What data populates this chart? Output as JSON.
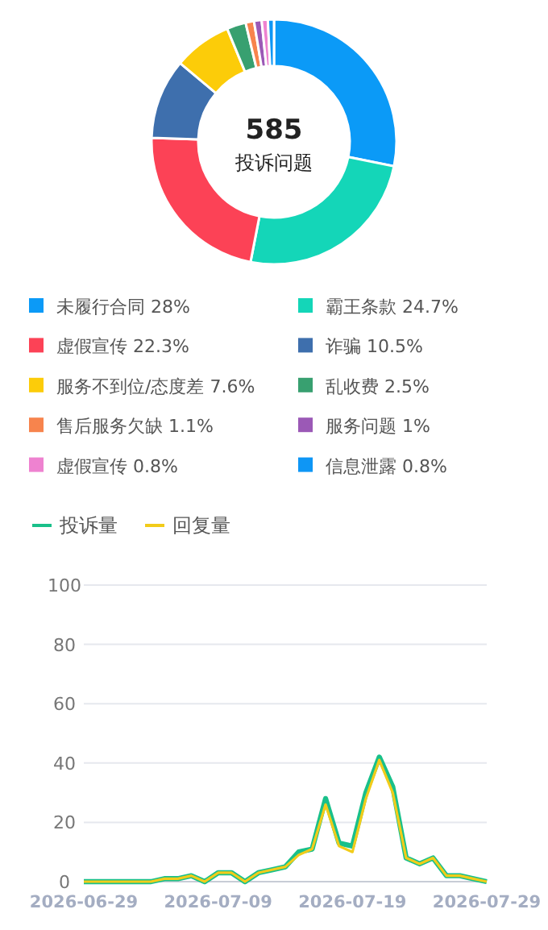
{
  "chart_data": [
    {
      "type": "donut",
      "annotations": [
        "585",
        "投诉问题"
      ],
      "categories": [
        "未履行合同",
        "霸王条款",
        "虚假宣传",
        "诈骗",
        "服务不到位/态度差",
        "乱收费",
        "售后服务欠缺",
        "服务问题",
        "虚假宣传",
        "信息泄露"
      ],
      "values": [
        28,
        24.7,
        22.3,
        10.5,
        7.6,
        2.5,
        1.1,
        1,
        0.8,
        0.8
      ],
      "value_labels": [
        "28%",
        "24.7%",
        "22.3%",
        "10.5%",
        "7.6%",
        "2.5%",
        "1.1%",
        "1%",
        "0.8%",
        "0.8%"
      ],
      "colors": [
        "#0b9af7",
        "#14d6b8",
        "#fc4256",
        "#3e6fad",
        "#fccc09",
        "#38a070",
        "#f7844d",
        "#9b59b6",
        "#ee82d0",
        "#0e96f5"
      ],
      "legend": "bottom"
    },
    {
      "type": "line",
      "x": [
        "2026-06-29",
        "2026-06-30",
        "2026-07-01",
        "2026-07-02",
        "2026-07-03",
        "2026-07-04",
        "2026-07-05",
        "2026-07-06",
        "2026-07-07",
        "2026-07-08",
        "2026-07-09",
        "2026-07-10",
        "2026-07-11",
        "2026-07-12",
        "2026-07-13",
        "2026-07-14",
        "2026-07-15",
        "2026-07-16",
        "2026-07-17",
        "2026-07-18",
        "2026-07-19",
        "2026-07-20",
        "2026-07-21",
        "2026-07-22",
        "2026-07-23",
        "2026-07-24",
        "2026-07-25",
        "2026-07-26",
        "2026-07-27",
        "2026-07-28",
        "2026-07-29"
      ],
      "series": [
        {
          "name": "投诉量",
          "color": "#19c08a",
          "values": [
            0,
            0,
            0,
            0,
            0,
            0,
            1,
            1,
            2,
            0,
            3,
            3,
            0,
            3,
            4,
            5,
            10,
            11,
            28,
            13,
            12,
            30,
            42,
            32,
            8,
            6,
            8,
            2,
            2,
            1,
            0
          ]
        },
        {
          "name": "回复量",
          "color": "#f2cc1a",
          "values": [
            0,
            0,
            0,
            0,
            0,
            0,
            1,
            1,
            2,
            0,
            3,
            3,
            0,
            3,
            4,
            5,
            9,
            11,
            26,
            12,
            10,
            28,
            41,
            30,
            8,
            6,
            8,
            2,
            2,
            1,
            0
          ]
        }
      ],
      "xlim": [
        "2026-06-29",
        "2026-07-29"
      ],
      "xticks": [
        "2026-06-29",
        "2026-07-09",
        "2026-07-19",
        "2026-07-29"
      ],
      "ylim": [
        0,
        100
      ],
      "yticks": [
        0,
        20,
        40,
        60,
        80,
        100
      ],
      "grid": "y",
      "legend": "top left",
      "marker": "none",
      "line_style": "solid"
    }
  ]
}
